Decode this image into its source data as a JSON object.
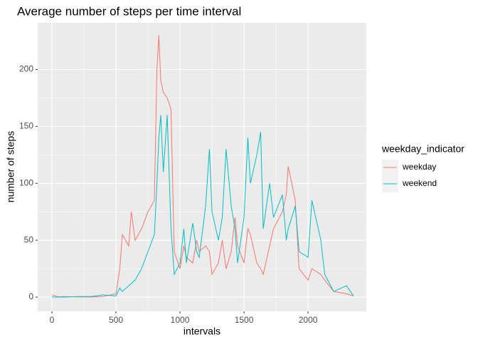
{
  "chart_data": {
    "type": "line",
    "title": "Average number of steps per time interval",
    "x_label": "intervals",
    "y_label": "number of steps",
    "legend_title": "weekday_indicator",
    "legend_position": "right",
    "grid": true,
    "x": [
      0,
      50,
      100,
      200,
      300,
      400,
      500,
      530,
      550,
      600,
      620,
      650,
      700,
      750,
      800,
      820,
      835,
      850,
      870,
      900,
      930,
      955,
      1000,
      1030,
      1050,
      1100,
      1130,
      1150,
      1200,
      1230,
      1250,
      1300,
      1330,
      1360,
      1400,
      1430,
      1450,
      1500,
      1530,
      1550,
      1600,
      1630,
      1650,
      1700,
      1730,
      1800,
      1830,
      1845,
      1900,
      1930,
      2000,
      2030,
      2100,
      2130,
      2200,
      2300,
      2355
    ],
    "series": [
      {
        "name": "weekday",
        "color": "#F8766D",
        "values": [
          2,
          0.3,
          0.5,
          0.2,
          0.1,
          0.5,
          3,
          25,
          55,
          45,
          75,
          50,
          60,
          75,
          85,
          200,
          230,
          190,
          180,
          175,
          165,
          40,
          25,
          45,
          35,
          30,
          50,
          40,
          45,
          40,
          20,
          30,
          50,
          25,
          40,
          70,
          45,
          30,
          60,
          55,
          30,
          25,
          20,
          45,
          60,
          75,
          90,
          115,
          85,
          25,
          15,
          25,
          20,
          15,
          5,
          3,
          1
        ]
      },
      {
        "name": "weekend",
        "color": "#00BFC4",
        "values": [
          0,
          0.2,
          0,
          0.5,
          0.5,
          2,
          1,
          8,
          5,
          10,
          12,
          15,
          25,
          40,
          55,
          100,
          140,
          160,
          110,
          160,
          60,
          20,
          30,
          60,
          30,
          65,
          40,
          35,
          80,
          130,
          75,
          50,
          70,
          130,
          80,
          60,
          30,
          70,
          140,
          100,
          125,
          145,
          60,
          100,
          70,
          90,
          50,
          60,
          80,
          40,
          35,
          85,
          50,
          20,
          5,
          10,
          1
        ]
      }
    ],
    "xlim": [
      -111,
      2455
    ],
    "ylim": [
      -12.5,
      241
    ],
    "xticks": [
      0,
      500,
      1000,
      1500,
      2000
    ],
    "yticks": [
      0,
      50,
      100,
      150,
      200
    ]
  }
}
